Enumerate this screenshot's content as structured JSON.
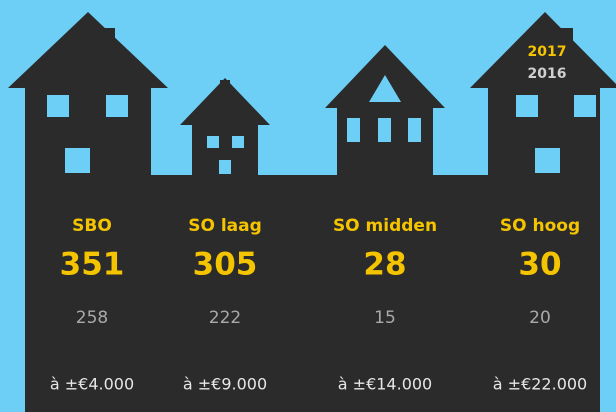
{
  "legend": {
    "current": "2017",
    "previous": "2016"
  },
  "columns": [
    {
      "label": "SBO",
      "value_2017": 351,
      "value_2016": 258,
      "price": "à ±€4.000"
    },
    {
      "label": "SO laag",
      "value_2017": 305,
      "value_2016": 222,
      "price": "à ±€9.000"
    },
    {
      "label": "SO midden",
      "value_2017": 28,
      "value_2016": 15,
      "price": "à ±€14.000"
    },
    {
      "label": "SO hoog",
      "value_2017": 30,
      "value_2016": 20,
      "price": "à ±€22.000"
    }
  ]
}
